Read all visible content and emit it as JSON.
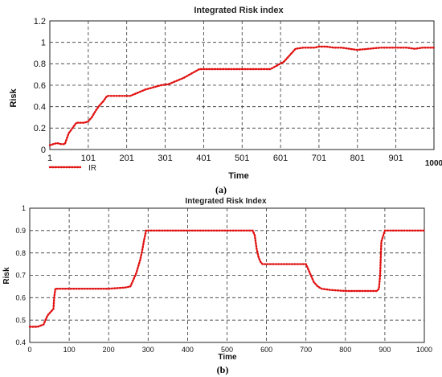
{
  "chart_data": [
    {
      "type": "line",
      "title": "Integrated Risk index",
      "xlabel": "Time",
      "ylabel": "Risk",
      "caption": "(a)",
      "xlim": [
        1,
        1000
      ],
      "ylim": [
        0,
        1.2
      ],
      "x_ticks": [
        "1",
        "101",
        "201",
        "301",
        "401",
        "501",
        "601",
        "701",
        "801",
        "901",
        "1000"
      ],
      "y_ticks": [
        "0",
        "0.2",
        "0.4",
        "0.6",
        "0.8",
        "1",
        "1.2"
      ],
      "grid": true,
      "legend": "bottom-left",
      "color": "#e11010",
      "series": [
        {
          "name": "IR",
          "x": [
            1,
            10,
            20,
            30,
            40,
            50,
            60,
            70,
            80,
            90,
            100,
            110,
            120,
            130,
            140,
            150,
            160,
            170,
            180,
            190,
            200,
            210,
            230,
            250,
            270,
            290,
            310,
            330,
            350,
            370,
            390,
            410,
            440,
            470,
            500,
            530,
            560,
            575,
            590,
            610,
            620,
            630,
            640,
            660,
            690,
            700,
            720,
            740,
            760,
            780,
            800,
            830,
            860,
            890,
            910,
            930,
            950,
            970,
            990,
            1000
          ],
          "values": [
            0.04,
            0.05,
            0.06,
            0.05,
            0.05,
            0.15,
            0.2,
            0.25,
            0.25,
            0.25,
            0.26,
            0.3,
            0.36,
            0.41,
            0.45,
            0.5,
            0.5,
            0.5,
            0.5,
            0.5,
            0.5,
            0.5,
            0.53,
            0.56,
            0.58,
            0.6,
            0.61,
            0.64,
            0.67,
            0.71,
            0.75,
            0.75,
            0.75,
            0.75,
            0.75,
            0.75,
            0.75,
            0.75,
            0.78,
            0.82,
            0.86,
            0.9,
            0.94,
            0.95,
            0.95,
            0.96,
            0.96,
            0.95,
            0.95,
            0.94,
            0.93,
            0.94,
            0.95,
            0.95,
            0.95,
            0.95,
            0.94,
            0.95,
            0.95,
            0.95
          ]
        }
      ]
    },
    {
      "type": "line",
      "title": "Integrated Risk Index",
      "xlabel": "Time",
      "ylabel": "Risk",
      "caption": "(b)",
      "xlim": [
        0,
        1000
      ],
      "ylim": [
        0.4,
        1
      ],
      "x_ticks": [
        "0",
        "100",
        "200",
        "300",
        "400",
        "500",
        "600",
        "700",
        "800",
        "900",
        "1000"
      ],
      "y_ticks": [
        "0.4",
        "0.5",
        "0.6",
        "0.7",
        "0.8",
        "0.9",
        "1"
      ],
      "grid": true,
      "color": "#e11010",
      "series": [
        {
          "x": [
            0,
            20,
            35,
            40,
            45,
            50,
            55,
            60,
            62,
            65,
            70,
            100,
            150,
            200,
            240,
            255,
            260,
            265,
            270,
            275,
            280,
            285,
            290,
            295,
            300,
            350,
            400,
            450,
            500,
            550,
            560,
            565,
            570,
            575,
            580,
            585,
            590,
            600,
            650,
            700,
            705,
            710,
            715,
            720,
            730,
            740,
            760,
            800,
            850,
            880,
            885,
            888,
            891,
            900,
            950,
            1000
          ],
          "values": [
            0.47,
            0.47,
            0.48,
            0.5,
            0.52,
            0.53,
            0.54,
            0.55,
            0.6,
            0.64,
            0.64,
            0.64,
            0.64,
            0.64,
            0.645,
            0.65,
            0.67,
            0.69,
            0.71,
            0.74,
            0.77,
            0.81,
            0.86,
            0.9,
            0.9,
            0.9,
            0.9,
            0.9,
            0.9,
            0.9,
            0.9,
            0.9,
            0.88,
            0.82,
            0.78,
            0.76,
            0.75,
            0.75,
            0.75,
            0.75,
            0.73,
            0.71,
            0.69,
            0.67,
            0.65,
            0.64,
            0.635,
            0.63,
            0.63,
            0.63,
            0.64,
            0.7,
            0.85,
            0.9,
            0.9,
            0.9
          ]
        }
      ]
    }
  ]
}
